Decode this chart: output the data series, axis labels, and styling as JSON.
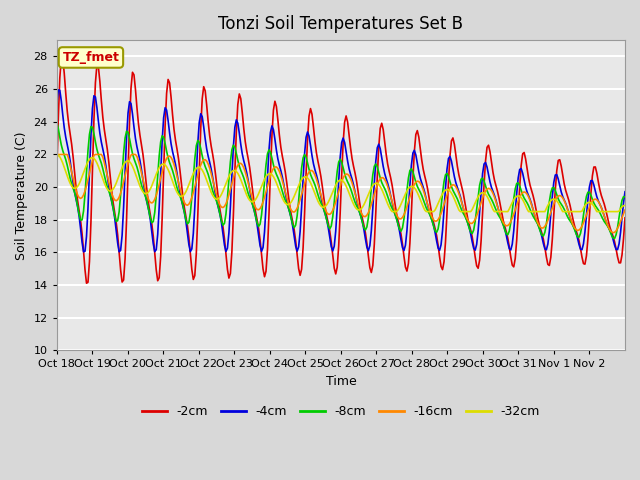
{
  "title": "Tonzi Soil Temperatures Set B",
  "xlabel": "Time",
  "ylabel": "Soil Temperature (C)",
  "ylim": [
    10,
    29
  ],
  "yticks": [
    10,
    12,
    14,
    16,
    18,
    20,
    22,
    24,
    26,
    28
  ],
  "xtick_labels": [
    "Oct 18",
    "Oct 19",
    "Oct 20",
    "Oct 21",
    "Oct 22",
    "Oct 23",
    "Oct 24",
    "Oct 25",
    "Oct 26",
    "Oct 27",
    "Oct 28",
    "Oct 29",
    "Oct 30",
    "Oct 31",
    "Nov 1",
    "Nov 2"
  ],
  "legend_labels": [
    "-2cm",
    "-4cm",
    "-8cm",
    "-16cm",
    "-32cm"
  ],
  "line_colors": [
    "#dd0000",
    "#0000dd",
    "#00cc00",
    "#ff8800",
    "#dddd00"
  ],
  "annotation_text": "TZ_fmet",
  "annotation_box_facecolor": "#ffffcc",
  "annotation_box_edgecolor": "#999900",
  "fig_facecolor": "#d8d8d8",
  "ax_facecolor": "#e8e8e8",
  "grid_color": "#ffffff",
  "title_fontsize": 12,
  "tick_fontsize": 8,
  "axis_label_fontsize": 9,
  "legend_fontsize": 9,
  "linewidth": 1.2
}
